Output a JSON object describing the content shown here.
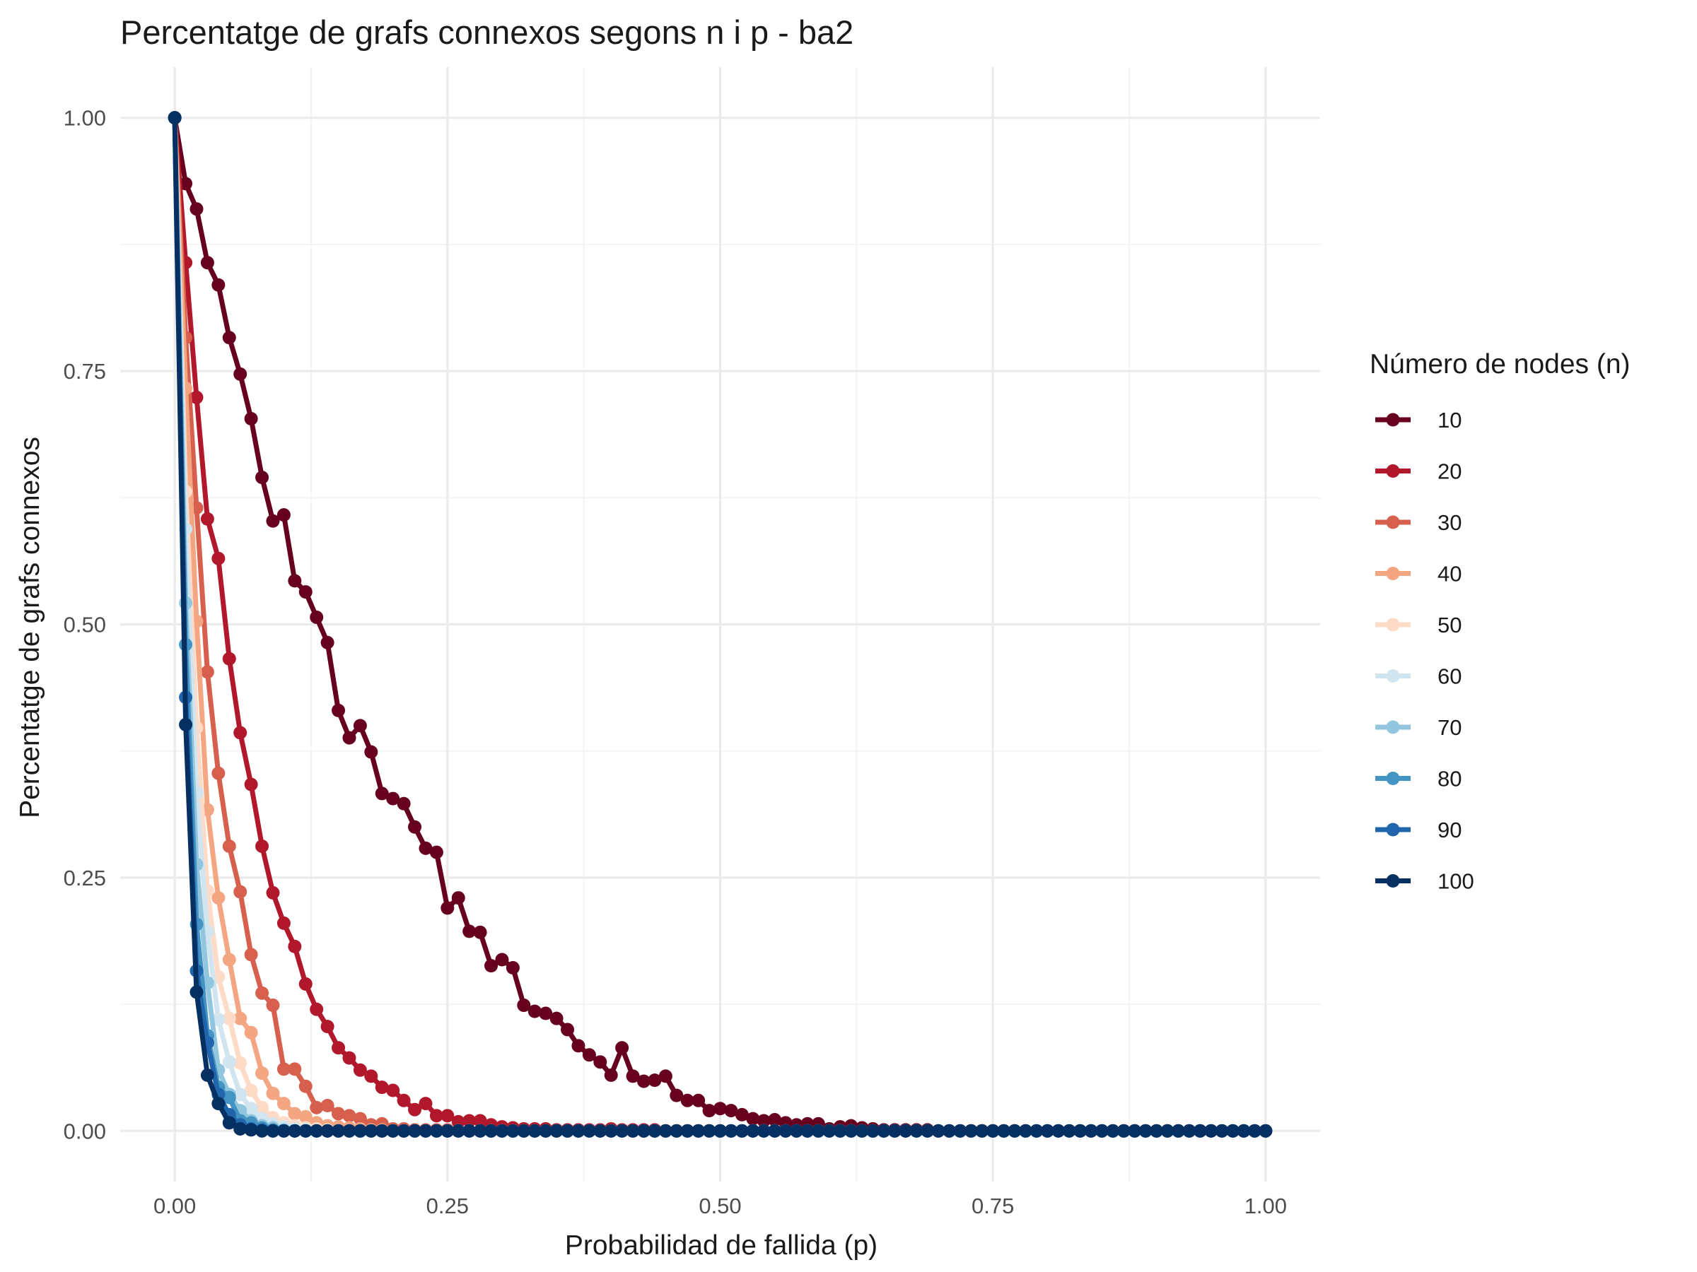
{
  "chart_data": {
    "type": "line",
    "title": "Percentatge de grafs connexos segons n i p - ba2",
    "xlabel": "Probabilidad de fallida (p)",
    "ylabel": "Percentatge de grafs connexos",
    "xlim": [
      -0.05,
      1.05
    ],
    "ylim": [
      -0.05,
      1.05
    ],
    "x_ticks": [
      0,
      0.25,
      0.5,
      0.75,
      1
    ],
    "x_tick_labels": [
      "0.00",
      "0.25",
      "0.50",
      "0.75",
      "1.00"
    ],
    "y_ticks": [
      0,
      0.25,
      0.5,
      0.75,
      1
    ],
    "y_tick_labels": [
      "0.00",
      "0.25",
      "0.50",
      "0.75",
      "1.00"
    ],
    "grid": true,
    "legend": {
      "title": "Número de nodes (n)",
      "position": "right"
    },
    "x": [
      0,
      0.01,
      0.02,
      0.03,
      0.04,
      0.05,
      0.06,
      0.07,
      0.08,
      0.09,
      0.1,
      0.11,
      0.12,
      0.13,
      0.14,
      0.15,
      0.16,
      0.17,
      0.18,
      0.19,
      0.2,
      0.21,
      0.22,
      0.23,
      0.24,
      0.25,
      0.26,
      0.27,
      0.28,
      0.29,
      0.3,
      0.31,
      0.32,
      0.33,
      0.34,
      0.35,
      0.36,
      0.37,
      0.38,
      0.39,
      0.4,
      0.41,
      0.42,
      0.43,
      0.44,
      0.45,
      0.46,
      0.47,
      0.48,
      0.49,
      0.5,
      0.51,
      0.52,
      0.53,
      0.54,
      0.55,
      0.56,
      0.57,
      0.58,
      0.59,
      0.6,
      0.61,
      0.62,
      0.63,
      0.64,
      0.65,
      0.66,
      0.67,
      0.68,
      0.69,
      0.7,
      0.71,
      0.72,
      0.73,
      0.74,
      0.75,
      0.76,
      0.77,
      0.78,
      0.79,
      0.8,
      0.81,
      0.82,
      0.83,
      0.84,
      0.85,
      0.86,
      0.87,
      0.88,
      0.89,
      0.9,
      0.91,
      0.92,
      0.93,
      0.94,
      0.95,
      0.96,
      0.97,
      0.98,
      0.99,
      1
    ],
    "series": [
      {
        "name": "10",
        "color": "#67001f",
        "values": [
          1,
          0.935,
          0.91,
          0.857,
          0.835,
          0.783,
          0.747,
          0.703,
          0.645,
          0.602,
          0.608,
          0.543,
          0.532,
          0.507,
          0.482,
          0.415,
          0.388,
          0.4,
          0.374,
          0.333,
          0.328,
          0.323,
          0.3,
          0.279,
          0.275,
          0.22,
          0.23,
          0.197,
          0.196,
          0.163,
          0.169,
          0.161,
          0.124,
          0.118,
          0.116,
          0.111,
          0.1,
          0.084,
          0.075,
          0.068,
          0.055,
          0.082,
          0.054,
          0.049,
          0.05,
          0.054,
          0.035,
          0.03,
          0.03,
          0.02,
          0.022,
          0.02,
          0.016,
          0.012,
          0.01,
          0.011,
          0.008,
          0.006,
          0.007,
          0.007,
          0.002,
          0.004,
          0.005,
          0.003,
          0.002,
          0.001,
          0.001,
          0.001,
          0.001,
          0.001,
          0,
          0,
          0,
          0,
          0,
          0,
          0,
          0,
          0,
          0,
          0,
          0,
          0,
          0,
          0,
          0,
          0,
          0,
          0,
          0,
          0,
          0,
          0,
          0,
          0,
          0,
          0,
          0,
          0,
          0,
          0
        ]
      },
      {
        "name": "20",
        "color": "#b2182b",
        "values": [
          1,
          0.857,
          0.724,
          0.604,
          0.565,
          0.466,
          0.393,
          0.342,
          0.281,
          0.235,
          0.205,
          0.182,
          0.145,
          0.12,
          0.103,
          0.082,
          0.072,
          0.06,
          0.054,
          0.043,
          0.04,
          0.03,
          0.021,
          0.027,
          0.015,
          0.015,
          0.009,
          0.01,
          0.01,
          0.006,
          0.004,
          0.003,
          0.002,
          0.002,
          0.002,
          0.001,
          0.001,
          0.001,
          0.001,
          0.001,
          0.002,
          0.001,
          0.001,
          0.001,
          0.001,
          0,
          0,
          0,
          0,
          0,
          0,
          0,
          0,
          0,
          0,
          0,
          0,
          0,
          0,
          0,
          0,
          0,
          0,
          0,
          0,
          0,
          0,
          0,
          0,
          0,
          0,
          0,
          0,
          0,
          0,
          0,
          0,
          0,
          0,
          0,
          0,
          0,
          0,
          0,
          0,
          0,
          0,
          0,
          0,
          0,
          0,
          0,
          0,
          0,
          0,
          0,
          0,
          0,
          0,
          0,
          0
        ]
      },
      {
        "name": "30",
        "color": "#d6604d",
        "values": [
          1,
          0.783,
          0.615,
          0.453,
          0.353,
          0.281,
          0.236,
          0.174,
          0.136,
          0.124,
          0.061,
          0.061,
          0.044,
          0.023,
          0.025,
          0.017,
          0.015,
          0.012,
          0.006,
          0.007,
          0.002,
          0.002,
          0.001,
          0.001,
          0.001,
          0.001,
          0,
          0,
          0,
          0,
          0,
          0,
          0,
          0,
          0,
          0,
          0,
          0,
          0,
          0,
          0,
          0,
          0,
          0,
          0,
          0,
          0,
          0,
          0,
          0,
          0,
          0,
          0,
          0,
          0,
          0,
          0,
          0,
          0,
          0,
          0,
          0,
          0,
          0,
          0,
          0,
          0,
          0,
          0,
          0,
          0,
          0,
          0,
          0,
          0,
          0,
          0,
          0,
          0,
          0,
          0,
          0,
          0,
          0,
          0,
          0,
          0,
          0,
          0,
          0,
          0,
          0,
          0,
          0,
          0,
          0,
          0,
          0,
          0,
          0,
          0
        ]
      },
      {
        "name": "40",
        "color": "#f4a582",
        "values": [
          1,
          0.733,
          0.503,
          0.317,
          0.23,
          0.169,
          0.111,
          0.097,
          0.057,
          0.037,
          0.027,
          0.017,
          0.014,
          0.008,
          0.005,
          0.004,
          0.003,
          0.002,
          0.001,
          0.001,
          0,
          0,
          0,
          0,
          0,
          0,
          0,
          0,
          0,
          0,
          0,
          0,
          0,
          0,
          0,
          0,
          0,
          0,
          0,
          0,
          0,
          0,
          0,
          0,
          0,
          0,
          0,
          0,
          0,
          0,
          0,
          0,
          0,
          0,
          0,
          0,
          0,
          0,
          0,
          0,
          0,
          0,
          0,
          0,
          0,
          0,
          0,
          0,
          0,
          0,
          0,
          0,
          0,
          0,
          0,
          0,
          0,
          0,
          0,
          0,
          0,
          0,
          0,
          0,
          0,
          0,
          0,
          0,
          0,
          0,
          0,
          0,
          0,
          0,
          0,
          0,
          0,
          0,
          0,
          0,
          0
        ]
      },
      {
        "name": "50",
        "color": "#fddbc7",
        "values": [
          1,
          0.631,
          0.398,
          0.237,
          0.152,
          0.111,
          0.067,
          0.04,
          0.023,
          0.013,
          0.008,
          0.005,
          0.003,
          0.002,
          0.001,
          0,
          0,
          0,
          0,
          0,
          0,
          0,
          0,
          0,
          0,
          0,
          0,
          0,
          0,
          0,
          0,
          0,
          0,
          0,
          0,
          0,
          0,
          0,
          0,
          0,
          0,
          0,
          0,
          0,
          0,
          0,
          0,
          0,
          0,
          0,
          0,
          0,
          0,
          0,
          0,
          0,
          0,
          0,
          0,
          0,
          0,
          0,
          0,
          0,
          0,
          0,
          0,
          0,
          0,
          0,
          0,
          0,
          0,
          0,
          0,
          0,
          0,
          0,
          0,
          0,
          0,
          0,
          0,
          0,
          0,
          0,
          0,
          0,
          0,
          0,
          0,
          0,
          0,
          0,
          0,
          0,
          0,
          0,
          0,
          0,
          0
        ]
      },
      {
        "name": "60",
        "color": "#d1e5f0",
        "values": [
          1,
          0.594,
          0.334,
          0.197,
          0.11,
          0.068,
          0.036,
          0.022,
          0.012,
          0.007,
          0.004,
          0.002,
          0.001,
          0,
          0,
          0,
          0,
          0,
          0,
          0,
          0,
          0,
          0,
          0,
          0,
          0,
          0,
          0,
          0,
          0,
          0,
          0,
          0,
          0,
          0,
          0,
          0,
          0,
          0,
          0,
          0,
          0,
          0,
          0,
          0,
          0,
          0,
          0,
          0,
          0,
          0,
          0,
          0,
          0,
          0,
          0,
          0,
          0,
          0,
          0,
          0,
          0,
          0,
          0,
          0,
          0,
          0,
          0,
          0,
          0,
          0,
          0,
          0,
          0,
          0,
          0,
          0,
          0,
          0,
          0,
          0,
          0,
          0,
          0,
          0,
          0,
          0,
          0,
          0,
          0,
          0,
          0,
          0,
          0,
          0,
          0,
          0,
          0,
          0,
          0,
          0
        ]
      },
      {
        "name": "70",
        "color": "#92c5de",
        "values": [
          1,
          0.521,
          0.263,
          0.146,
          0.06,
          0.036,
          0.02,
          0.01,
          0.005,
          0.003,
          0.001,
          0,
          0,
          0,
          0,
          0,
          0,
          0,
          0,
          0,
          0,
          0,
          0,
          0,
          0,
          0,
          0,
          0,
          0,
          0,
          0,
          0,
          0,
          0,
          0,
          0,
          0,
          0,
          0,
          0,
          0,
          0,
          0,
          0,
          0,
          0,
          0,
          0,
          0,
          0,
          0,
          0,
          0,
          0,
          0,
          0,
          0,
          0,
          0,
          0,
          0,
          0,
          0,
          0,
          0,
          0,
          0,
          0,
          0,
          0,
          0,
          0,
          0,
          0,
          0,
          0,
          0,
          0,
          0,
          0,
          0,
          0,
          0,
          0,
          0,
          0,
          0,
          0,
          0,
          0,
          0,
          0,
          0,
          0,
          0,
          0,
          0,
          0,
          0,
          0,
          0
        ]
      },
      {
        "name": "80",
        "color": "#4393c3",
        "values": [
          1,
          0.48,
          0.204,
          0.094,
          0.043,
          0.033,
          0.01,
          0.008,
          0.003,
          0.001,
          0,
          0,
          0,
          0,
          0,
          0,
          0,
          0,
          0,
          0,
          0,
          0,
          0,
          0,
          0,
          0,
          0,
          0,
          0,
          0,
          0,
          0,
          0,
          0,
          0,
          0,
          0,
          0,
          0,
          0,
          0,
          0,
          0,
          0,
          0,
          0,
          0,
          0,
          0,
          0,
          0,
          0,
          0,
          0,
          0,
          0,
          0,
          0,
          0,
          0,
          0,
          0,
          0,
          0,
          0,
          0,
          0,
          0,
          0,
          0,
          0,
          0,
          0,
          0,
          0,
          0,
          0,
          0,
          0,
          0,
          0,
          0,
          0,
          0,
          0,
          0,
          0,
          0,
          0,
          0,
          0,
          0,
          0,
          0,
          0,
          0,
          0,
          0,
          0,
          0,
          0
        ]
      },
      {
        "name": "90",
        "color": "#2166ac",
        "values": [
          1,
          0.428,
          0.158,
          0.087,
          0.036,
          0.016,
          0.006,
          0.002,
          0.001,
          0,
          0,
          0,
          0,
          0,
          0,
          0,
          0,
          0,
          0,
          0,
          0,
          0,
          0,
          0,
          0,
          0,
          0,
          0,
          0,
          0,
          0,
          0,
          0,
          0,
          0,
          0,
          0,
          0,
          0,
          0,
          0,
          0,
          0,
          0,
          0,
          0,
          0,
          0,
          0,
          0,
          0,
          0,
          0,
          0,
          0,
          0,
          0,
          0,
          0,
          0,
          0,
          0,
          0,
          0,
          0,
          0,
          0,
          0,
          0,
          0,
          0,
          0,
          0,
          0,
          0,
          0,
          0,
          0,
          0,
          0,
          0,
          0,
          0,
          0,
          0,
          0,
          0,
          0,
          0,
          0,
          0,
          0,
          0,
          0,
          0,
          0,
          0,
          0,
          0,
          0,
          0
        ]
      },
      {
        "name": "100",
        "color": "#053061",
        "values": [
          1,
          0.401,
          0.137,
          0.055,
          0.027,
          0.008,
          0.002,
          0.001,
          0,
          0,
          0,
          0,
          0,
          0,
          0,
          0,
          0,
          0,
          0,
          0,
          0,
          0,
          0,
          0,
          0,
          0,
          0,
          0,
          0,
          0,
          0,
          0,
          0,
          0,
          0,
          0,
          0,
          0,
          0,
          0,
          0,
          0,
          0,
          0,
          0,
          0,
          0,
          0,
          0,
          0,
          0,
          0,
          0,
          0,
          0,
          0,
          0,
          0,
          0,
          0,
          0,
          0,
          0,
          0,
          0,
          0,
          0,
          0,
          0,
          0,
          0,
          0,
          0,
          0,
          0,
          0,
          0,
          0,
          0,
          0,
          0,
          0,
          0,
          0,
          0,
          0,
          0,
          0,
          0,
          0,
          0,
          0,
          0,
          0,
          0,
          0,
          0,
          0,
          0,
          0,
          0
        ]
      }
    ]
  }
}
